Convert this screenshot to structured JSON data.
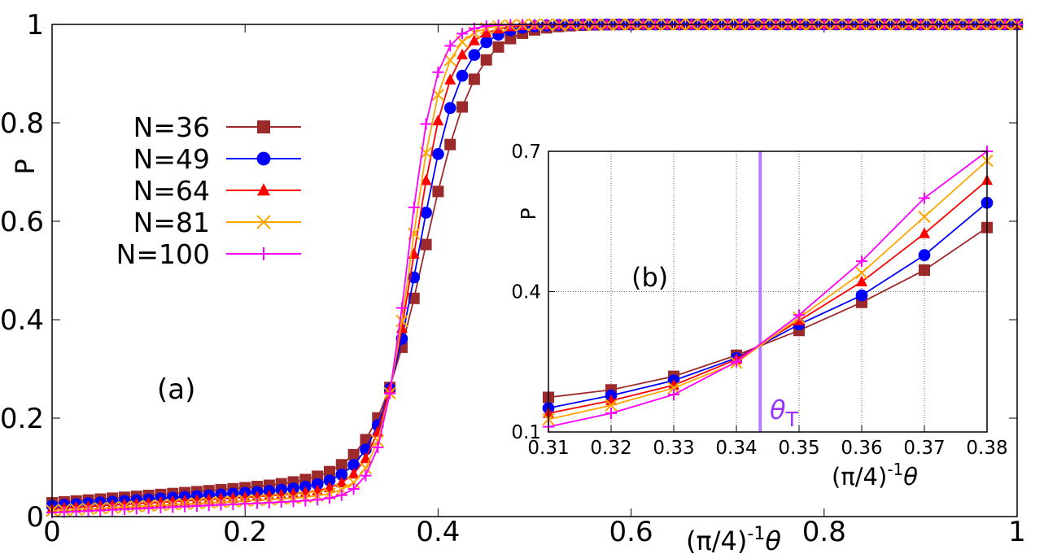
{
  "chart_data": [
    {
      "panel": "(a)",
      "type": "line",
      "xlabel": "(π/4)",
      "xlabel_exponent": "-1",
      "xlabel_var": "θ",
      "ylabel": "P",
      "xlim": [
        0,
        1
      ],
      "ylim": [
        0,
        1
      ],
      "xticks": [
        0,
        0.2,
        0.4,
        0.6,
        0.8,
        1
      ],
      "xtick_labels": [
        "0",
        "0.2",
        "0.4",
        "0.6",
        "0.8",
        "1"
      ],
      "yticks": [
        0,
        0.2,
        0.4,
        0.6,
        0.8,
        1
      ],
      "ytick_labels": [
        "0",
        "0.2",
        "0.4",
        "0.6",
        "0.8",
        "1"
      ],
      "grid": false,
      "legend_position": "upper-left",
      "series": [
        {
          "name": "N=36",
          "color": "#9c2a2a",
          "marker": "square",
          "theta_c": 0.3864,
          "width": 0.026,
          "base": 0.028,
          "slope": 0.15
        },
        {
          "name": "N=49",
          "color": "#0000ff",
          "marker": "circle",
          "theta_c": 0.3797,
          "width": 0.022,
          "base": 0.022,
          "slope": 0.13
        },
        {
          "name": "N=64",
          "color": "#ff0000",
          "marker": "triangle",
          "theta_c": 0.3747,
          "width": 0.019,
          "base": 0.016,
          "slope": 0.115
        },
        {
          "name": "N=81",
          "color": "#ffa500",
          "marker": "x",
          "theta_c": 0.3715,
          "width": 0.0165,
          "base": 0.012,
          "slope": 0.1
        },
        {
          "name": "N=100",
          "color": "#ff00ff",
          "marker": "plus",
          "theta_c": 0.3684,
          "width": 0.0145,
          "base": 0.008,
          "slope": 0.09
        }
      ]
    },
    {
      "panel": "(b)",
      "type": "line",
      "xlabel": "(π/4)",
      "xlabel_exponent": "-1",
      "xlabel_var": "θ",
      "ylabel": "P",
      "xlim": [
        0.31,
        0.38
      ],
      "ylim": [
        0.1,
        0.7
      ],
      "xticks": [
        0.31,
        0.32,
        0.33,
        0.34,
        0.35,
        0.36,
        0.37,
        0.38
      ],
      "xtick_labels": [
        "0.31",
        "0.32",
        "0.33",
        "0.34",
        "0.35",
        "0.36",
        "0.37",
        "0.38"
      ],
      "yticks": [
        0.1,
        0.4,
        0.7
      ],
      "ytick_labels": [
        "0.1",
        "0.4",
        "0.7"
      ],
      "grid": true,
      "annotation": {
        "label": "θ",
        "subscript": "T",
        "x": 0.3438,
        "color": "#9933ff"
      },
      "series": [
        {
          "name": "N=36",
          "color": "#9c2a2a",
          "marker": "square",
          "x": [
            0.31,
            0.32,
            0.33,
            0.34,
            0.35,
            0.36,
            0.37,
            0.38
          ],
          "y": [
            0.174,
            0.19,
            0.219,
            0.264,
            0.317,
            0.377,
            0.446,
            0.537
          ]
        },
        {
          "name": "N=49",
          "color": "#0000ff",
          "marker": "circle",
          "x": [
            0.31,
            0.32,
            0.33,
            0.34,
            0.35,
            0.36,
            0.37,
            0.38
          ],
          "y": [
            0.151,
            0.178,
            0.21,
            0.258,
            0.33,
            0.392,
            0.478,
            0.59
          ]
        },
        {
          "name": "N=64",
          "color": "#ff0000",
          "marker": "triangle",
          "x": [
            0.31,
            0.32,
            0.33,
            0.34,
            0.35,
            0.36,
            0.37,
            0.38
          ],
          "y": [
            0.14,
            0.167,
            0.2,
            0.255,
            0.338,
            0.421,
            0.524,
            0.638
          ]
        },
        {
          "name": "N=81",
          "color": "#ffa500",
          "marker": "x",
          "x": [
            0.31,
            0.32,
            0.33,
            0.34,
            0.35,
            0.36,
            0.37,
            0.38
          ],
          "y": [
            0.127,
            0.157,
            0.194,
            0.248,
            0.344,
            0.44,
            0.56,
            0.68
          ]
        },
        {
          "name": "N=100",
          "color": "#ff00ff",
          "marker": "plus",
          "x": [
            0.31,
            0.32,
            0.33,
            0.34,
            0.35,
            0.36,
            0.37,
            0.38
          ],
          "y": [
            0.111,
            0.14,
            0.18,
            0.25,
            0.35,
            0.465,
            0.6,
            0.7
          ]
        }
      ]
    }
  ]
}
